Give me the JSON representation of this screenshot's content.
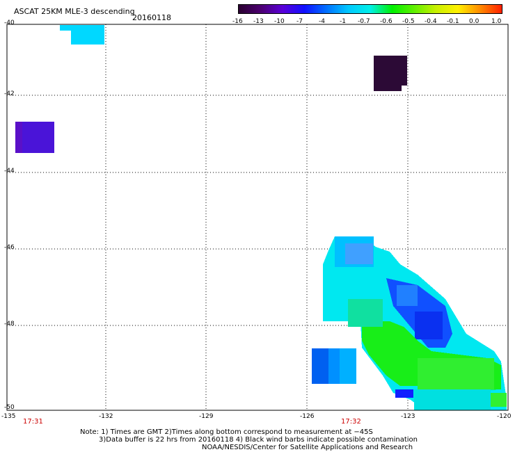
{
  "header": {
    "title": "ASCAT 25KM MLE-3 descending",
    "date": "20160118"
  },
  "colorbar": {
    "labels": [
      "-16",
      "-13",
      "-10",
      "-7",
      "-4",
      "-1",
      "-0.7",
      "-0.6",
      "-0.5",
      "-0.4",
      "-0.1",
      "0.0",
      "1.0"
    ],
    "colors": [
      "#2a0030",
      "#4c0070",
      "#5a00d8",
      "#1010ff",
      "#0070ff",
      "#00c8ff",
      "#00f0e8",
      "#00f000",
      "#60f000",
      "#c8f000",
      "#fff000",
      "#ff8c00",
      "#ff2000"
    ]
  },
  "map": {
    "lon_labels": [
      "-135",
      "-132",
      "-129",
      "-126",
      "-123",
      "-120"
    ],
    "lat_labels": [
      "-40",
      "-42",
      "-44",
      "-46",
      "-48",
      "-50"
    ],
    "time_labels": [
      "17:31",
      "17:32"
    ],
    "grid": "dotted"
  },
  "notes": {
    "line1": "Note: 1) Times are GMT 2)Times along bottom correspond to measurement at −45S",
    "line2": "3)Data buffer is 22 hrs from 20160118 4) Black wind barbs indicate possible contamination",
    "line3": "NOAA/NESDIS/Center for Satellite Applications and Research"
  }
}
